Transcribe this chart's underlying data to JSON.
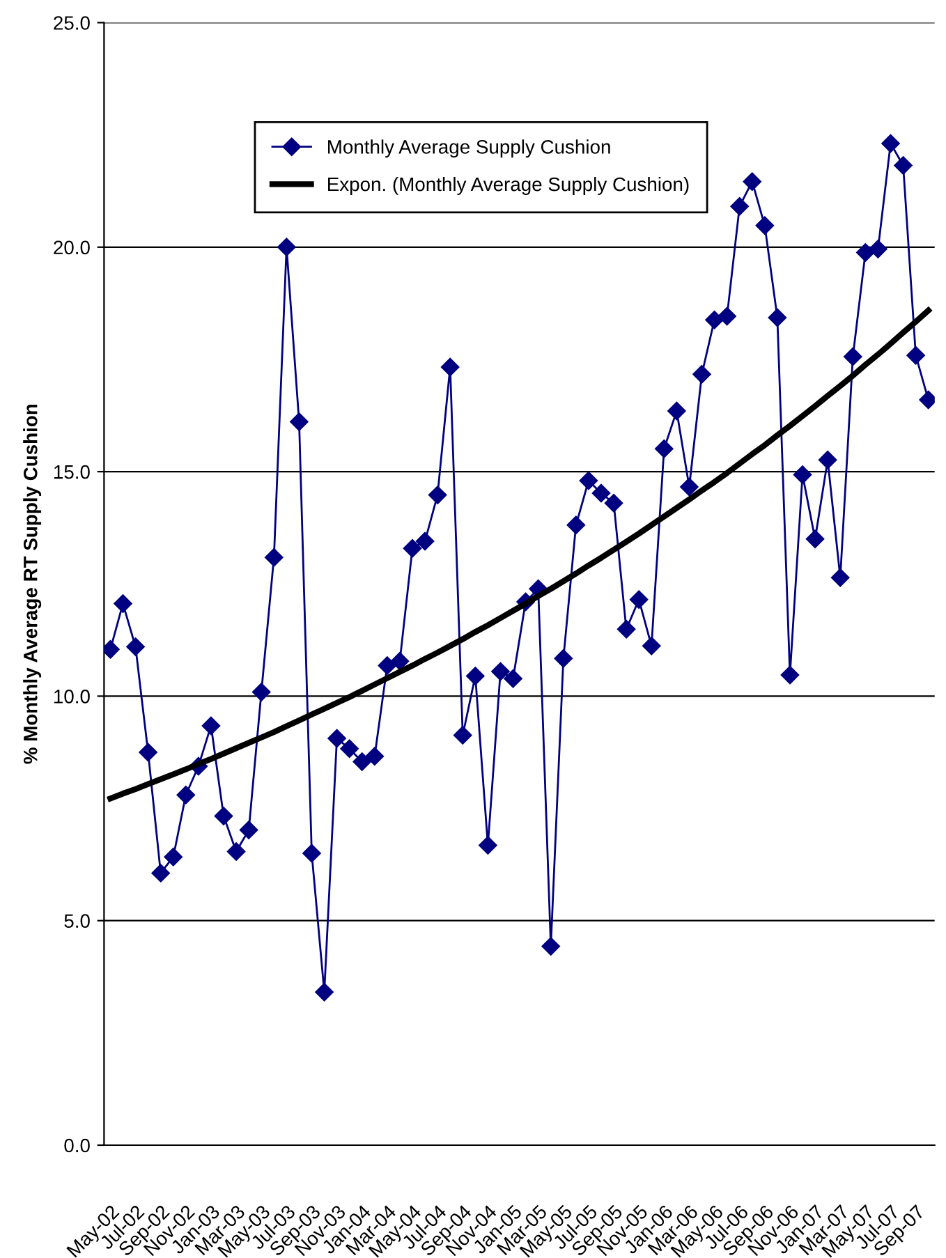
{
  "chart_data": {
    "type": "line",
    "ylabel": "% Monthly Average RT Supply Cushion",
    "categories": [
      "May-02",
      null,
      "Jul-02",
      null,
      "Sep-02",
      null,
      "Nov-02",
      null,
      "Jan-03",
      null,
      "Mar-03",
      null,
      "May-03",
      null,
      "Jul-03",
      null,
      "Sep-03",
      null,
      "Nov-03",
      null,
      "Jan-04",
      null,
      "Mar-04",
      null,
      "May-04",
      null,
      "Jul-04",
      null,
      "Sep-04",
      null,
      "Nov-04",
      null,
      "Jan-05",
      null,
      "Mar-05",
      null,
      "May-05",
      null,
      "Jul-05",
      null,
      "Sep-05",
      null,
      "Nov-05",
      null,
      "Jan-06",
      null,
      "Mar-06",
      null,
      "May-06",
      null,
      "Jul-06",
      null,
      "Sep-06",
      null,
      "Nov-06",
      null,
      "Jan-07",
      null,
      "Mar-07",
      null,
      "May-07",
      null,
      "Jul-07",
      null,
      "Sep-07",
      null
    ],
    "series": [
      {
        "name": "Monthly Average Supply Cushion",
        "color": "#000080",
        "marker": "diamond",
        "values": [
          11.04,
          12.06,
          11.1,
          8.75,
          6.06,
          6.42,
          7.8,
          8.44,
          9.34,
          7.33,
          6.54,
          7.02,
          10.09,
          13.09,
          20.0,
          16.11,
          6.5,
          3.41,
          9.06,
          8.83,
          8.54,
          8.66,
          10.68,
          10.78,
          13.29,
          13.45,
          14.48,
          17.33,
          9.13,
          10.45,
          6.68,
          10.55,
          10.39,
          12.1,
          12.39,
          4.43,
          10.84,
          13.81,
          14.8,
          14.52,
          14.3,
          11.49,
          12.15,
          11.12,
          15.51,
          16.35,
          14.66,
          17.17,
          18.38,
          18.46,
          20.91,
          21.46,
          20.48,
          18.43,
          10.47,
          14.93,
          13.5,
          15.26,
          12.64,
          17.56,
          19.88,
          19.96,
          22.31,
          21.82,
          17.59,
          16.6
        ]
      },
      {
        "name": "Expon. (Monthly Average Supply Cushion)",
        "color": "#000000",
        "marker": "none",
        "values": [
          7.72,
          7.83,
          7.93,
          8.04,
          8.15,
          8.26,
          8.37,
          8.49,
          8.6,
          8.72,
          8.84,
          8.96,
          9.08,
          9.2,
          9.33,
          9.46,
          9.59,
          9.72,
          9.85,
          9.98,
          10.12,
          10.26,
          10.4,
          10.54,
          10.68,
          10.83,
          10.97,
          11.12,
          11.27,
          11.43,
          11.58,
          11.74,
          11.9,
          12.06,
          12.23,
          12.39,
          12.56,
          12.73,
          12.91,
          13.08,
          13.26,
          13.44,
          13.62,
          13.81,
          14.0,
          14.19,
          14.38,
          14.58,
          14.77,
          14.97,
          15.18,
          15.39,
          15.59,
          15.81,
          16.02,
          16.24,
          16.46,
          16.69,
          16.91,
          17.14,
          17.38,
          17.61,
          17.85,
          18.1,
          18.34,
          18.59
        ]
      }
    ],
    "ylim": [
      0,
      25
    ],
    "yticks": [
      {
        "value": 0,
        "label": "0.0"
      },
      {
        "value": 5,
        "label": "5.0"
      },
      {
        "value": 10,
        "label": "10.0"
      },
      {
        "value": 15,
        "label": "15.0"
      },
      {
        "value": 20,
        "label": "20.0"
      },
      {
        "value": 25,
        "label": "25.0"
      }
    ],
    "grid": "y",
    "legend": "top left"
  }
}
